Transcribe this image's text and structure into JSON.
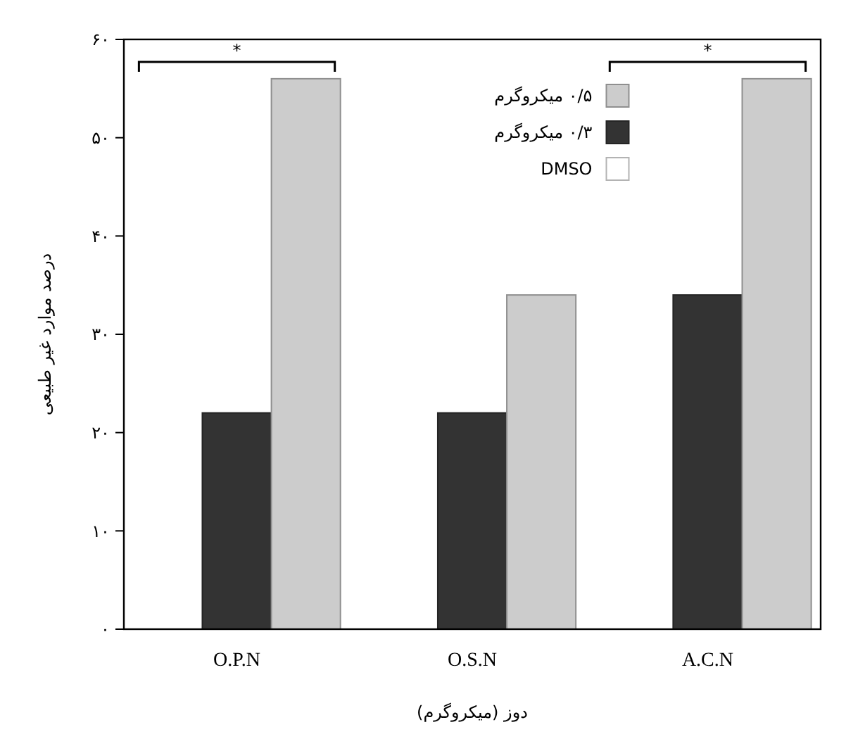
{
  "chart_data": {
    "type": "bar",
    "xlabel": "دوز (میکروگرم)",
    "ylabel": "درصد موارد غیر طبیعی",
    "categories": [
      "O.P.N",
      "O.S.N",
      "A.C.N"
    ],
    "series": [
      {
        "name": "DMSO",
        "color": "#ffffff",
        "values": [
          0,
          0,
          0
        ]
      },
      {
        "name": "۰/۳ میکروگرم",
        "color": "#333333",
        "values": [
          22,
          22,
          34
        ]
      },
      {
        "name": "۰/۵ میکروگرم",
        "color": "#cccccc",
        "values": [
          56,
          34,
          56
        ]
      }
    ],
    "ylim": [
      0,
      60
    ],
    "yticks": [
      {
        "value": 0,
        "label": "۰"
      },
      {
        "value": 10,
        "label": "۱۰"
      },
      {
        "value": 20,
        "label": "۲۰"
      },
      {
        "value": 30,
        "label": "۳۰"
      },
      {
        "value": 40,
        "label": "۴۰"
      },
      {
        "value": 50,
        "label": "۵۰"
      },
      {
        "value": 60,
        "label": "۶۰"
      }
    ],
    "legend": "top",
    "grid": false,
    "annotations": [
      "*",
      "*"
    ]
  }
}
